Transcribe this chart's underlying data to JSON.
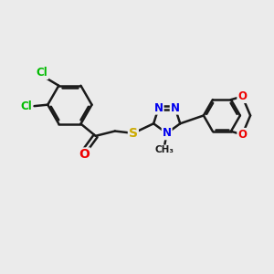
{
  "background_color": "#ebebeb",
  "bond_color": "#1a1a1a",
  "bond_width": 1.8,
  "atom_colors": {
    "C": "#1a1a1a",
    "N": "#0000ee",
    "O": "#ee0000",
    "S": "#ccaa00",
    "Cl": "#00bb00"
  },
  "font_size": 9,
  "figure_size": [
    3.0,
    3.0
  ],
  "dpi": 100,
  "xlim": [
    0,
    10
  ],
  "ylim": [
    0,
    10
  ]
}
